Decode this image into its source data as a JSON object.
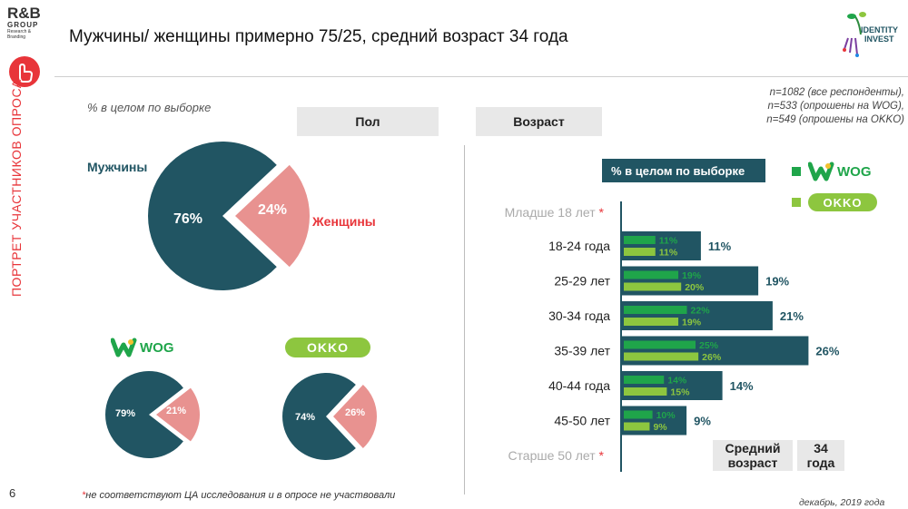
{
  "header": {
    "logo_line1": "R&B",
    "logo_line2": "GROUP",
    "logo_line3": "Research & Branding",
    "title": "Мужчины/ женщины примерно 75/25, средний возраст 34 года",
    "ident_logo_line1": "IDENTITY",
    "ident_logo_line2": "INVEST"
  },
  "sidebar": {
    "text": "ПОРТРЕТ УЧАСТНИКОВ ОПРОСА",
    "page_number": "6"
  },
  "notes": {
    "sample": "% в целом по выборке",
    "n_lines": [
      "n=1082 (все респонденты),",
      "n=533 (опрошены на WOG),",
      "n=549 (опрошены на OKKO)"
    ],
    "footnote_mark": "*",
    "footnote": "не соответствуют ЦА исследования и в опросе не участвовали",
    "date": "декабрь, 2019 года"
  },
  "gender_section": {
    "header": "Пол",
    "main_pie": {
      "male_label": "Мужчины",
      "female_label": "Женщины",
      "male_pct": 76,
      "female_pct": 24,
      "male_text": "76%",
      "female_text": "24%"
    },
    "wog_pie": {
      "brand": "WOG",
      "male_pct": 79,
      "female_pct": 21,
      "male_text": "79%",
      "female_text": "21%"
    },
    "okko_pie": {
      "brand": "OKKO",
      "male_pct": 74,
      "female_pct": 26,
      "male_text": "74%",
      "female_text": "26%"
    }
  },
  "age_section": {
    "header": "Возраст",
    "legend_total": "% в целом по выборке",
    "legend_wog": "WOG",
    "legend_okko": "OKKO",
    "excluded_young": "Младше 18 лет",
    "excluded_old": "Старше 50 лет",
    "avg_label_1": "Средний",
    "avg_label_2": "возраст",
    "avg_value_1": "34",
    "avg_value_2": "года"
  },
  "colors": {
    "dark_teal": "#215563",
    "pink": "#e89290",
    "red": "#e8353a",
    "wog_green": "#1fa54a",
    "okko_green": "#8dc63f"
  },
  "chart_data": [
    {
      "type": "pie",
      "title": "Пол",
      "labels": [
        "Мужчины",
        "Женщины"
      ],
      "values": [
        76,
        24
      ]
    },
    {
      "type": "pie",
      "title": "WOG",
      "labels": [
        "Мужчины",
        "Женщины"
      ],
      "values": [
        79,
        21
      ]
    },
    {
      "type": "pie",
      "title": "OKKO",
      "labels": [
        "Мужчины",
        "Женщины"
      ],
      "values": [
        74,
        26
      ]
    },
    {
      "type": "bar",
      "title": "Возраст",
      "categories": [
        "18-24 года",
        "25-29 лет",
        "30-34 года",
        "35-39 лет",
        "40-44 года",
        "45-50 лет"
      ],
      "series": [
        {
          "name": "% в целом по выборке",
          "values": [
            11,
            19,
            21,
            26,
            14,
            9
          ]
        },
        {
          "name": "WOG",
          "values": [
            11,
            19,
            22,
            25,
            14,
            10
          ]
        },
        {
          "name": "OKKO",
          "values": [
            11,
            20,
            19,
            26,
            15,
            9
          ]
        }
      ]
    }
  ]
}
